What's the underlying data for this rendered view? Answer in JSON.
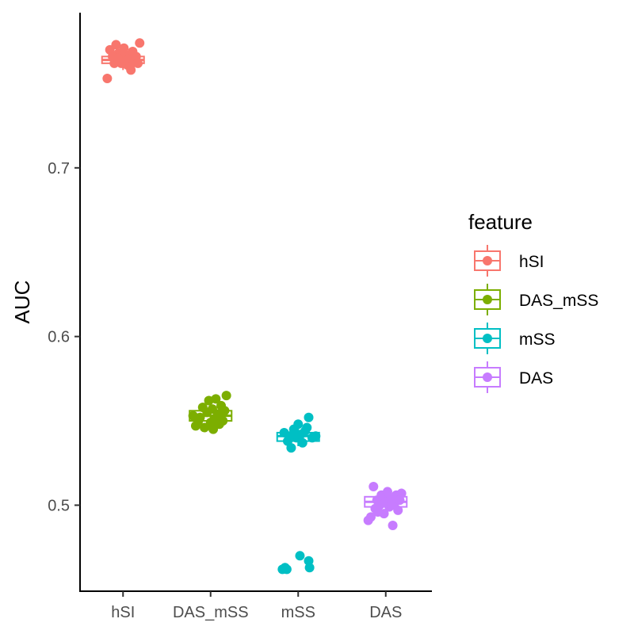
{
  "chart_data": {
    "type": "boxplot",
    "ylabel": "AUC",
    "xlabel": "",
    "ylim": [
      0.449,
      0.792
    ],
    "yticks": [
      0.5,
      0.6,
      0.7
    ],
    "ytick_labels": [
      "0.5",
      "0.6",
      "0.7"
    ],
    "categories": [
      "hSI",
      "DAS_mSS",
      "mSS",
      "DAS"
    ],
    "grid": false,
    "legend": {
      "title": "feature",
      "placement": "right",
      "entries": [
        "hSI",
        "DAS_mSS",
        "mSS",
        "DAS"
      ]
    },
    "series": [
      {
        "name": "hSI",
        "color": "#F8766D",
        "box": {
          "min": 0.758,
          "q1": 0.762,
          "median": 0.764,
          "q3": 0.766,
          "max": 0.771
        },
        "points": [
          [
            -0.18,
            0.753
          ],
          [
            -0.15,
            0.77
          ],
          [
            -0.1,
            0.762
          ],
          [
            -0.08,
            0.773
          ],
          [
            -0.05,
            0.768
          ],
          [
            -0.02,
            0.762
          ],
          [
            0.0,
            0.764
          ],
          [
            0.03,
            0.767
          ],
          [
            0.05,
            0.761
          ],
          [
            0.07,
            0.765
          ],
          [
            0.09,
            0.758
          ],
          [
            0.11,
            0.769
          ],
          [
            0.13,
            0.763
          ],
          [
            0.15,
            0.766
          ],
          [
            0.19,
            0.774
          ],
          [
            -0.12,
            0.766
          ],
          [
            -0.06,
            0.765
          ],
          [
            0.01,
            0.771
          ],
          [
            0.08,
            0.76
          ],
          [
            0.17,
            0.762
          ]
        ]
      },
      {
        "name": "DAS_mSS",
        "color": "#7CAE00",
        "box": {
          "min": 0.546,
          "q1": 0.55,
          "median": 0.553,
          "q3": 0.556,
          "max": 0.561
        },
        "points": [
          [
            -0.2,
            0.553
          ],
          [
            -0.17,
            0.547
          ],
          [
            -0.12,
            0.552
          ],
          [
            -0.09,
            0.558
          ],
          [
            -0.07,
            0.546
          ],
          [
            -0.04,
            0.555
          ],
          [
            -0.02,
            0.562
          ],
          [
            0.0,
            0.549
          ],
          [
            0.02,
            0.557
          ],
          [
            0.04,
            0.551
          ],
          [
            0.06,
            0.563
          ],
          [
            0.08,
            0.554
          ],
          [
            0.1,
            0.548
          ],
          [
            0.12,
            0.559
          ],
          [
            0.14,
            0.55
          ],
          [
            0.16,
            0.556
          ],
          [
            0.18,
            0.565
          ],
          [
            -0.14,
            0.55
          ],
          [
            0.03,
            0.545
          ],
          [
            0.11,
            0.553
          ]
        ]
      },
      {
        "name": "mSS",
        "color": "#00BFC4",
        "box": {
          "min": 0.535,
          "q1": 0.538,
          "median": 0.541,
          "q3": 0.543,
          "max": 0.547
        },
        "points": [
          [
            -0.16,
            0.543
          ],
          [
            -0.12,
            0.538
          ],
          [
            -0.08,
            0.534
          ],
          [
            -0.05,
            0.545
          ],
          [
            -0.02,
            0.54
          ],
          [
            0.0,
            0.548
          ],
          [
            0.03,
            0.542
          ],
          [
            0.05,
            0.537
          ],
          [
            0.08,
            0.544
          ],
          [
            0.12,
            0.552
          ],
          [
            0.16,
            0.54
          ],
          [
            0.2,
            0.541
          ],
          [
            -0.1,
            0.541
          ],
          [
            0.1,
            0.546
          ],
          [
            -0.18,
            0.462
          ],
          [
            -0.15,
            0.463
          ],
          [
            0.02,
            0.47
          ],
          [
            0.12,
            0.467
          ],
          [
            0.13,
            0.463
          ],
          [
            -0.13,
            0.462
          ]
        ]
      },
      {
        "name": "DAS",
        "color": "#C77CFF",
        "box": {
          "min": 0.494,
          "q1": 0.499,
          "median": 0.502,
          "q3": 0.505,
          "max": 0.509
        },
        "points": [
          [
            -0.2,
            0.491
          ],
          [
            -0.17,
            0.493
          ],
          [
            -0.14,
            0.511
          ],
          [
            -0.12,
            0.498
          ],
          [
            -0.1,
            0.503
          ],
          [
            -0.07,
            0.5
          ],
          [
            -0.05,
            0.506
          ],
          [
            -0.02,
            0.495
          ],
          [
            0.0,
            0.502
          ],
          [
            0.02,
            0.508
          ],
          [
            0.04,
            0.499
          ],
          [
            0.06,
            0.504
          ],
          [
            0.08,
            0.488
          ],
          [
            0.1,
            0.501
          ],
          [
            0.12,
            0.506
          ],
          [
            0.14,
            0.497
          ],
          [
            0.16,
            0.503
          ],
          [
            0.18,
            0.507
          ],
          [
            -0.09,
            0.496
          ],
          [
            0.07,
            0.5
          ]
        ]
      }
    ]
  }
}
